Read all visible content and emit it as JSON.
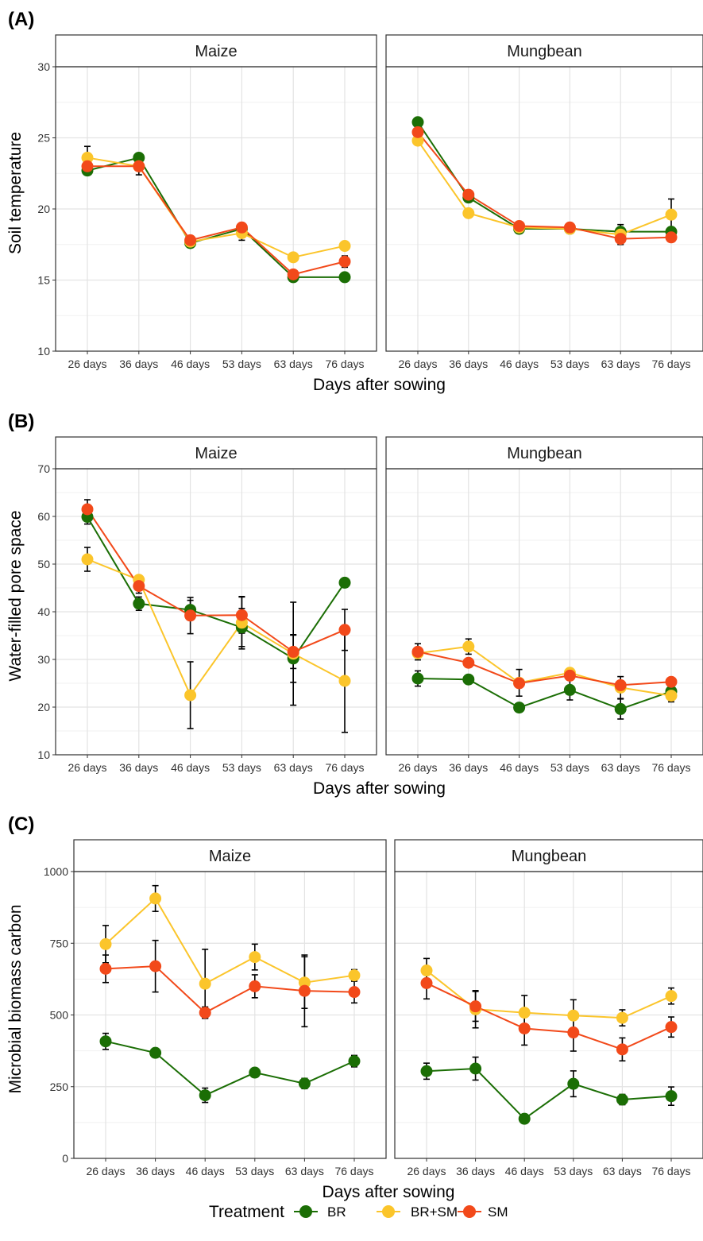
{
  "figure": {
    "legend": {
      "title": "Treatment",
      "entries": [
        {
          "name": "BR",
          "color": "#1b6e05"
        },
        {
          "name": "BR+SM",
          "color": "#fbc52b"
        },
        {
          "name": "SM",
          "color": "#f2491a"
        }
      ]
    }
  },
  "chart_data": [
    {
      "panel": "(A)",
      "type": "line",
      "ylabel": "Soil temperature",
      "xlabel": "Days after sowing",
      "ylim": [
        10,
        30
      ],
      "yticks": [
        10,
        15,
        20,
        25,
        30
      ],
      "categories": [
        "26 days",
        "36 days",
        "46 days",
        "53 days",
        "63 days",
        "76 days"
      ],
      "grid": true,
      "facets": [
        {
          "name": "Maize",
          "series": [
            {
              "name": "BR",
              "values": [
                22.7,
                23.6,
                17.6,
                18.6,
                15.2,
                15.2
              ],
              "errors": [
                0.2,
                0.2,
                0.2,
                0.2,
                0.2,
                0.2
              ]
            },
            {
              "name": "BR+SM",
              "values": [
                23.6,
                23.0,
                17.7,
                18.3,
                16.6,
                17.4
              ],
              "errors": [
                0.8,
                0.2,
                0.2,
                0.5,
                0.2,
                0.2
              ]
            },
            {
              "name": "SM",
              "values": [
                23.0,
                23.0,
                17.8,
                18.7,
                15.4,
                16.3
              ],
              "errors": [
                0.3,
                0.6,
                0.2,
                0.2,
                0.2,
                0.4
              ]
            }
          ]
        },
        {
          "name": "Mungbean",
          "series": [
            {
              "name": "BR",
              "values": [
                26.1,
                20.8,
                18.6,
                18.6,
                18.4,
                18.4
              ],
              "errors": [
                0.2,
                0.3,
                0.2,
                0.2,
                0.5,
                0.2
              ]
            },
            {
              "name": "BR+SM",
              "values": [
                24.8,
                19.7,
                18.7,
                18.6,
                18.2,
                19.6
              ],
              "errors": [
                0.2,
                0.2,
                0.2,
                0.2,
                0.2,
                1.1
              ]
            },
            {
              "name": "SM",
              "values": [
                25.4,
                21.0,
                18.8,
                18.7,
                17.9,
                18.0
              ],
              "errors": [
                0.2,
                0.3,
                0.2,
                0.2,
                0.4,
                0.2
              ]
            }
          ]
        }
      ]
    },
    {
      "panel": "(B)",
      "type": "line",
      "ylabel": "Water-filled pore space",
      "xlabel": "Days after sowing",
      "ylim": [
        10,
        70
      ],
      "yticks": [
        10,
        20,
        30,
        40,
        50,
        60,
        70
      ],
      "categories": [
        "26 days",
        "36 days",
        "46 days",
        "53 days",
        "63 days",
        "76 days"
      ],
      "grid": true,
      "facets": [
        {
          "name": "Maize",
          "series": [
            {
              "name": "BR",
              "values": [
                59.9,
                41.7,
                40.4,
                36.7,
                30.2,
                46.1
              ],
              "errors": [
                1.5,
                1.4,
                2.0,
                4.0,
                5.0,
                0.5
              ]
            },
            {
              "name": "BR+SM",
              "values": [
                51.0,
                46.7,
                22.5,
                37.7,
                31.2,
                25.5
              ],
              "errors": [
                2.5,
                0.5,
                7.0,
                5.5,
                10.8,
                10.8
              ]
            },
            {
              "name": "SM",
              "values": [
                61.5,
                45.4,
                39.2,
                39.3,
                31.6,
                36.2
              ],
              "errors": [
                2.0,
                1.5,
                3.8,
                3.8,
                3.5,
                4.3
              ]
            }
          ]
        },
        {
          "name": "Mungbean",
          "series": [
            {
              "name": "BR",
              "values": [
                26.0,
                25.8,
                19.9,
                23.6,
                19.6,
                23.3
              ],
              "errors": [
                1.6,
                0.5,
                0.5,
                2.1,
                2.1,
                1.0
              ]
            },
            {
              "name": "BR+SM",
              "values": [
                31.3,
                32.7,
                25.1,
                27.2,
                24.1,
                22.4
              ],
              "errors": [
                0.6,
                1.6,
                2.8,
                0.5,
                2.3,
                1.3
              ]
            },
            {
              "name": "SM",
              "values": [
                31.6,
                29.3,
                25.0,
                26.6,
                24.6,
                25.3
              ],
              "errors": [
                1.7,
                0.5,
                0.5,
                0.5,
                0.5,
                0.5
              ]
            }
          ]
        }
      ]
    },
    {
      "panel": "(C)",
      "type": "line",
      "ylabel": "Microbial biomass carbon",
      "xlabel": "Days after sowing",
      "ylim": [
        0,
        1000
      ],
      "yticks": [
        0,
        250,
        500,
        750,
        1000
      ],
      "categories": [
        "26 days",
        "36 days",
        "46 days",
        "53 days",
        "63 days",
        "76 days"
      ],
      "grid": true,
      "facets": [
        {
          "name": "Maize",
          "series": [
            {
              "name": "BR",
              "values": [
                408,
                368,
                220,
                299,
                261,
                339
              ],
              "errors": [
                28,
                8,
                25,
                8,
                18,
                20
              ]
            },
            {
              "name": "BR+SM",
              "values": [
                747,
                906,
                609,
                702,
                613,
                638
              ],
              "errors": [
                65,
                45,
                120,
                45,
                90,
                20
              ]
            },
            {
              "name": "SM",
              "values": [
                661,
                670,
                508,
                600,
                584,
                580
              ],
              "errors": [
                48,
                90,
                20,
                40,
                125,
                38
              ]
            }
          ]
        },
        {
          "name": "Mungbean",
          "series": [
            {
              "name": "BR",
              "values": [
                304,
                313,
                138,
                260,
                205,
                217
              ],
              "errors": [
                28,
                40,
                8,
                45,
                18,
                32
              ]
            },
            {
              "name": "BR+SM",
              "values": [
                655,
                520,
                508,
                498,
                490,
                566
              ],
              "errors": [
                42,
                65,
                60,
                55,
                28,
                28
              ]
            },
            {
              "name": "SM",
              "values": [
                611,
                530,
                453,
                439,
                380,
                458
              ],
              "errors": [
                55,
                52,
                58,
                65,
                40,
                35
              ]
            }
          ]
        }
      ]
    }
  ]
}
